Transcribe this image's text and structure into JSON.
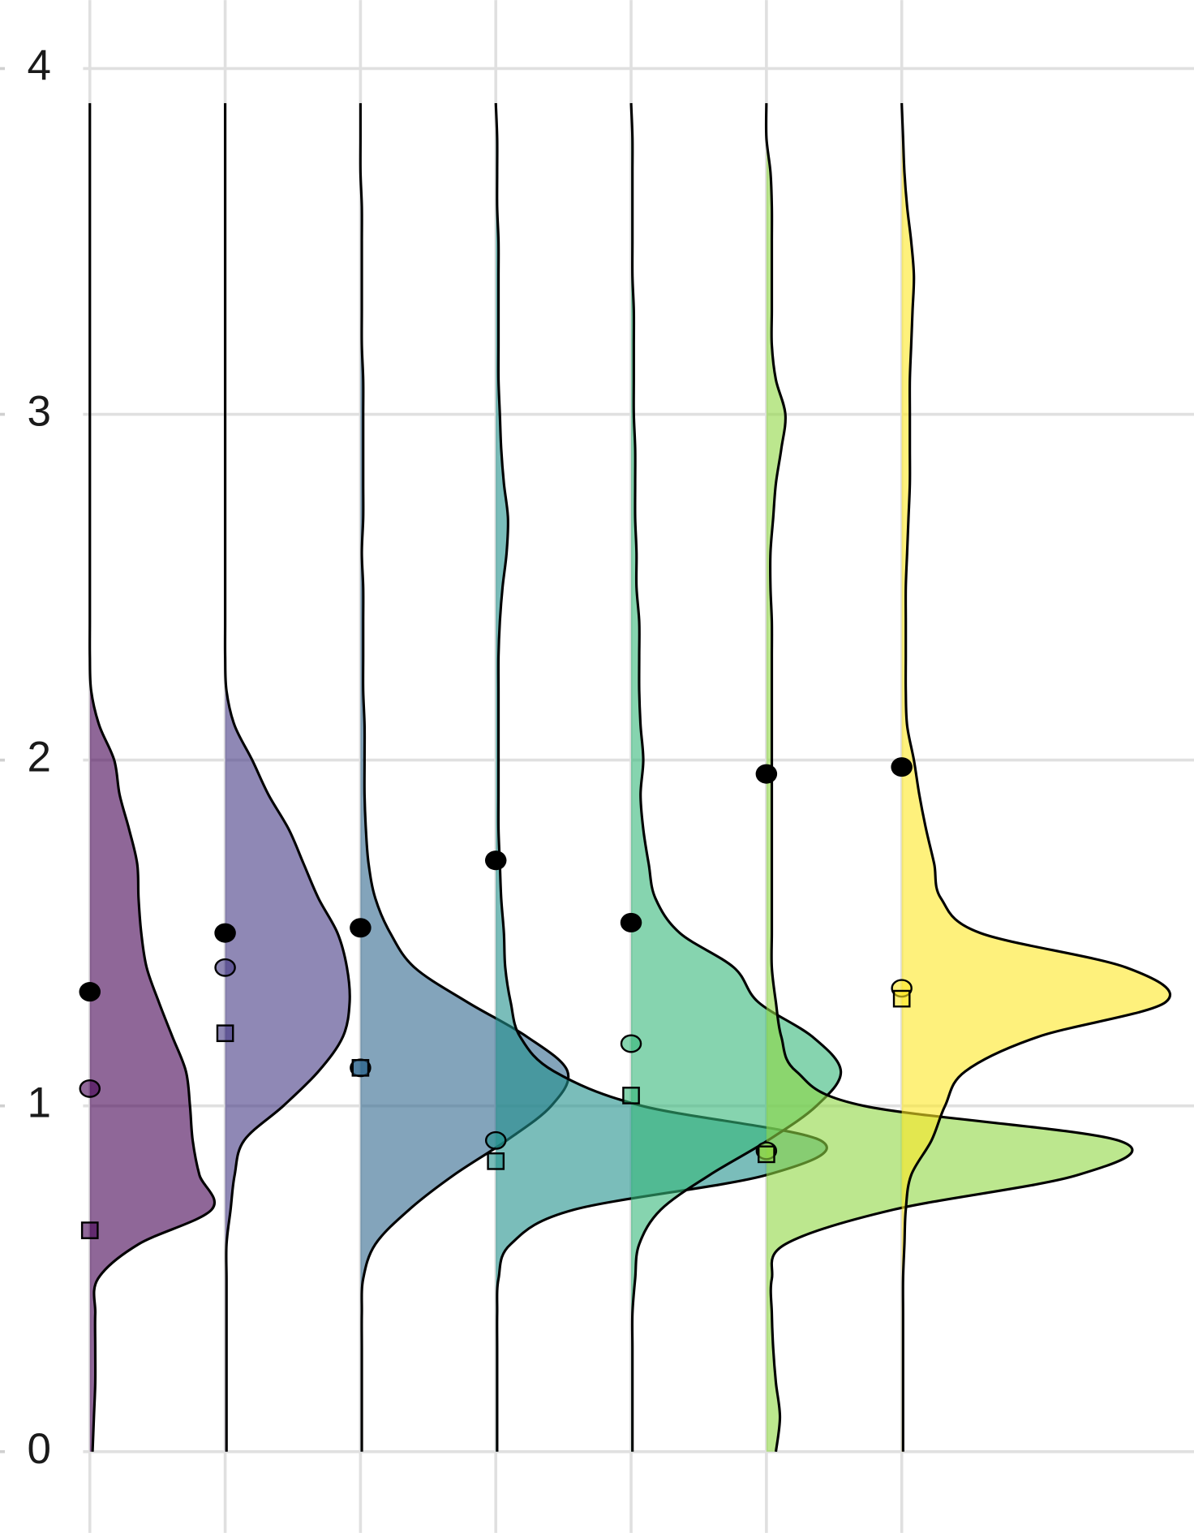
{
  "chart_data": {
    "type": "half-violin",
    "x": [
      1,
      2,
      3,
      4,
      5,
      6,
      7
    ],
    "categories": [
      null,
      null,
      null,
      null,
      null,
      null,
      null
    ],
    "xlim": [
      0.336,
      9.16
    ],
    "ylim": [
      -0.235,
      4.198
    ],
    "yticks": [
      0,
      1,
      2,
      3,
      4
    ],
    "grid": true,
    "fill_opacity": 0.6,
    "density_y": [
      0,
      0.1,
      0.2,
      0.3,
      0.4,
      0.5,
      0.6,
      0.7,
      0.8,
      0.9,
      1.0,
      1.1,
      1.2,
      1.3,
      1.4,
      1.5,
      1.6,
      1.7,
      1.8,
      1.9,
      2.0,
      2.1,
      2.2,
      2.3,
      2.4,
      2.5,
      2.6,
      2.7,
      2.8,
      2.9,
      3.0,
      3.1,
      3.2,
      3.3,
      3.4,
      3.5,
      3.6,
      3.7,
      3.8,
      3.9
    ],
    "densities": [
      {
        "color": "#440154",
        "widths": [
          0.02,
          0.03,
          0.04,
          0.04,
          0.04,
          0.06,
          0.36,
          0.9,
          0.81,
          0.76,
          0.74,
          0.71,
          0.61,
          0.51,
          0.42,
          0.38,
          0.36,
          0.35,
          0.29,
          0.22,
          0.18,
          0.07,
          0.01,
          0,
          0,
          0,
          0,
          0,
          0,
          0,
          0,
          0,
          0,
          0,
          0,
          0,
          0,
          0,
          0,
          0
        ]
      },
      {
        "color": "#443983",
        "widths": [
          0.01,
          0.01,
          0.01,
          0.01,
          0.01,
          0.01,
          0.01,
          0.04,
          0.07,
          0.14,
          0.43,
          0.69,
          0.87,
          0.92,
          0.9,
          0.83,
          0.69,
          0.58,
          0.47,
          0.32,
          0.2,
          0.07,
          0.01,
          0,
          0,
          0,
          0,
          0,
          0,
          0,
          0,
          0,
          0,
          0,
          0,
          0,
          0,
          0,
          0,
          0
        ]
      },
      {
        "color": "#31688e",
        "widths": [
          0.01,
          0.01,
          0.01,
          0.01,
          0.01,
          0.02,
          0.11,
          0.36,
          0.69,
          1.08,
          1.41,
          1.53,
          1.23,
          0.79,
          0.4,
          0.22,
          0.11,
          0.06,
          0.04,
          0.03,
          0.03,
          0.03,
          0.02,
          0.02,
          0.02,
          0.02,
          0.01,
          0.02,
          0.02,
          0.02,
          0.02,
          0.02,
          0.01,
          0.01,
          0.01,
          0.01,
          0.01,
          0,
          0,
          0
        ]
      },
      {
        "color": "#21918c",
        "widths": [
          0.01,
          0.01,
          0.01,
          0.01,
          0.01,
          0.02,
          0.11,
          0.58,
          2.0,
          2.4,
          1.08,
          0.43,
          0.18,
          0.11,
          0.07,
          0.06,
          0.04,
          0.03,
          0.02,
          0.02,
          0.02,
          0.02,
          0.02,
          0.02,
          0.03,
          0.05,
          0.08,
          0.09,
          0.06,
          0.04,
          0.03,
          0.02,
          0.02,
          0.02,
          0.02,
          0.02,
          0.01,
          0.01,
          0.01,
          0
        ]
      },
      {
        "color": "#35b779",
        "widths": [
          0.01,
          0.01,
          0.01,
          0.01,
          0.01,
          0.03,
          0.06,
          0.22,
          0.58,
          1.01,
          1.37,
          1.55,
          1.34,
          0.94,
          0.76,
          0.36,
          0.18,
          0.13,
          0.09,
          0.07,
          0.09,
          0.07,
          0.06,
          0.06,
          0.06,
          0.04,
          0.04,
          0.03,
          0.03,
          0.03,
          0.02,
          0.02,
          0.02,
          0.02,
          0.01,
          0.01,
          0.01,
          0.01,
          0.01,
          0
        ]
      },
      {
        "color": "#90d743",
        "widths": [
          0.07,
          0.1,
          0.07,
          0.05,
          0.04,
          0.04,
          0.14,
          0.94,
          2.3,
          2.6,
          0.72,
          0.22,
          0.11,
          0.07,
          0.04,
          0.04,
          0.04,
          0.04,
          0.04,
          0.04,
          0.04,
          0.04,
          0.04,
          0.04,
          0.04,
          0.03,
          0.03,
          0.05,
          0.07,
          0.11,
          0.14,
          0.07,
          0.04,
          0.04,
          0.04,
          0.04,
          0.04,
          0.03,
          0,
          0
        ]
      },
      {
        "color": "#fde725",
        "widths": [
          0.01,
          0.01,
          0.01,
          0.01,
          0.01,
          0.01,
          0.02,
          0.03,
          0.07,
          0.22,
          0.32,
          0.47,
          1.01,
          1.95,
          1.66,
          0.58,
          0.29,
          0.24,
          0.18,
          0.13,
          0.09,
          0.04,
          0.03,
          0.03,
          0.03,
          0.03,
          0.04,
          0.05,
          0.06,
          0.06,
          0.06,
          0.06,
          0.07,
          0.08,
          0.09,
          0.07,
          0.04,
          0.02,
          0.01,
          0
        ]
      }
    ],
    "series": [
      {
        "marker": "filled-circle",
        "color": "#000000",
        "values": [
          1.33,
          1.5,
          1.515,
          1.71,
          1.53,
          1.96,
          1.98
        ]
      },
      {
        "marker": "open-circle",
        "values": [
          1.05,
          1.4,
          1.11,
          0.9,
          1.18,
          0.87,
          1.34
        ]
      },
      {
        "marker": "open-square",
        "values": [
          0.64,
          1.21,
          1.11,
          0.84,
          1.03,
          0.86,
          1.31
        ]
      }
    ]
  }
}
